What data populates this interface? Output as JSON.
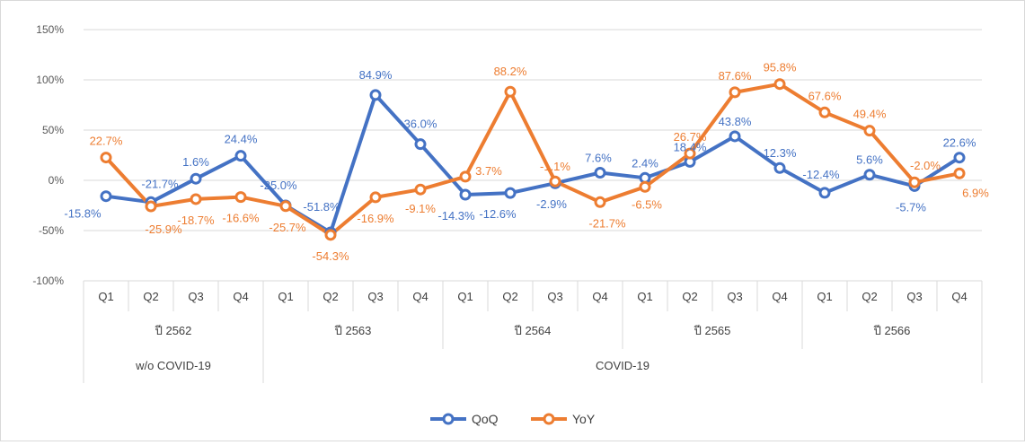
{
  "chart_data": {
    "type": "line",
    "title": "",
    "xlabel": "",
    "ylabel": "",
    "ylim": [
      -100,
      150
    ],
    "y_ticks": [
      "-100%",
      "-50%",
      "0%",
      "50%",
      "100%",
      "150%"
    ],
    "y_tick_values": [
      -100,
      -50,
      0,
      50,
      100,
      150
    ],
    "grid": true,
    "legend": "bottom-center",
    "categories": [
      "Q1",
      "Q2",
      "Q3",
      "Q4",
      "Q1",
      "Q2",
      "Q3",
      "Q4",
      "Q1",
      "Q2",
      "Q3",
      "Q4",
      "Q1",
      "Q2",
      "Q3",
      "Q4",
      "Q1",
      "Q2",
      "Q3",
      "Q4"
    ],
    "year_groups": [
      {
        "label": "ปี 2562",
        "span": 4
      },
      {
        "label": "ปี 2563",
        "span": 4
      },
      {
        "label": "ปี 2564",
        "span": 4
      },
      {
        "label": "ปี 2565",
        "span": 4
      },
      {
        "label": "ปี 2566",
        "span": 4
      }
    ],
    "period_groups": [
      {
        "label": "w/o COVID-19",
        "span": 4
      },
      {
        "label": "COVID-19",
        "span": 16
      }
    ],
    "series": [
      {
        "name": "QoQ",
        "color": "#4472c4",
        "values": [
          -15.8,
          -21.7,
          1.6,
          24.4,
          -25.0,
          -51.8,
          84.9,
          36.0,
          -14.3,
          -12.6,
          -2.9,
          7.6,
          2.4,
          18.4,
          43.8,
          12.3,
          -12.4,
          5.6,
          -5.7,
          22.6
        ],
        "labels": [
          "-15.8%",
          "-21.7%",
          "1.6%",
          "24.4%",
          "-25.0%",
          "-51.8%",
          "84.9%",
          "36.0%",
          "-14.3%",
          "-12.6%",
          "-2.9%",
          "7.6%",
          "2.4%",
          "18.4%",
          "43.8%",
          "12.3%",
          "-12.4%",
          "5.6%",
          "-5.7%",
          "22.6%"
        ]
      },
      {
        "name": "YoY",
        "color": "#ed7d31",
        "values": [
          22.7,
          -25.9,
          -18.7,
          -16.6,
          -25.7,
          -54.3,
          -16.9,
          -9.1,
          3.7,
          88.2,
          -1.1,
          -21.7,
          -6.5,
          26.7,
          87.6,
          95.8,
          67.6,
          49.4,
          -2.0,
          6.9
        ],
        "labels": [
          "22.7%",
          "-25.9%",
          "-18.7%",
          "-16.6%",
          "-25.7%",
          "-54.3%",
          "-16.9%",
          "-9.1%",
          "3.7%",
          "88.2%",
          "-1.1%",
          "-21.7%",
          "-6.5%",
          "26.7%",
          "87.6%",
          "95.8%",
          "67.6%",
          "49.4%",
          "-2.0%",
          "6.9%"
        ]
      }
    ]
  }
}
